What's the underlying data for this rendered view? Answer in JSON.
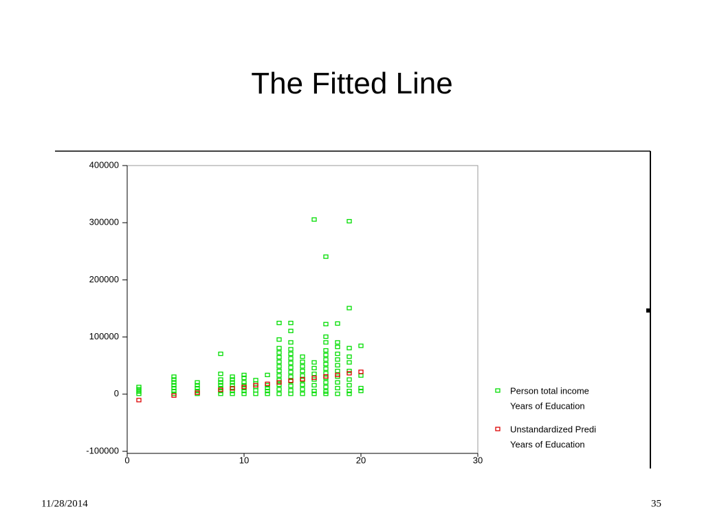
{
  "title": "The Fitted Line",
  "footer": {
    "date": "11/28/2014",
    "page": "35"
  },
  "chart_data": {
    "type": "scatter",
    "xlim": [
      0,
      30
    ],
    "xticks": [
      0,
      10,
      20,
      30
    ],
    "ylim": [
      -100000,
      400000
    ],
    "yticks": [
      -100000,
      0,
      100000,
      200000,
      300000,
      400000
    ],
    "legend": "right",
    "series": [
      {
        "name": "Person total income",
        "x_name": "Years of Education",
        "color": "#00dd00",
        "x": [
          1,
          1,
          1,
          1,
          4,
          4,
          4,
          4,
          4,
          4,
          4,
          6,
          6,
          6,
          6,
          6,
          8,
          8,
          8,
          8,
          8,
          8,
          8,
          8,
          9,
          9,
          9,
          9,
          9,
          9,
          9,
          10,
          10,
          10,
          10,
          10,
          10,
          10,
          11,
          11,
          11,
          11,
          11,
          12,
          12,
          12,
          12,
          12,
          13,
          13,
          13,
          13,
          13,
          13,
          13,
          13,
          13,
          13,
          13,
          13,
          13,
          14,
          14,
          14,
          14,
          14,
          14,
          14,
          14,
          14,
          14,
          14,
          14,
          14,
          14,
          15,
          15,
          15,
          15,
          15,
          15,
          15,
          15,
          15,
          16,
          16,
          16,
          16,
          16,
          16,
          16,
          16,
          17,
          17,
          17,
          17,
          17,
          17,
          17,
          17,
          17,
          17,
          17,
          17,
          17,
          17,
          17,
          18,
          18,
          18,
          18,
          18,
          18,
          18,
          18,
          18,
          18,
          18,
          19,
          19,
          19,
          19,
          19,
          19,
          19,
          19,
          19,
          19,
          20,
          20,
          20,
          20
        ],
        "values": [
          12000,
          8000,
          4000,
          0,
          30000,
          25000,
          20000,
          15000,
          10000,
          5000,
          0,
          20000,
          15000,
          10000,
          5000,
          0,
          70000,
          35000,
          25000,
          20000,
          15000,
          10000,
          5000,
          0,
          30000,
          25000,
          20000,
          15000,
          10000,
          5000,
          0,
          33000,
          28000,
          20000,
          15000,
          10000,
          5000,
          0,
          24000,
          18000,
          12000,
          6000,
          0,
          33000,
          15000,
          10000,
          5000,
          0,
          124000,
          95000,
          80000,
          72000,
          64000,
          56000,
          48000,
          40000,
          32000,
          24000,
          16000,
          8000,
          0,
          124000,
          110000,
          90000,
          78000,
          70000,
          62000,
          54000,
          46000,
          38000,
          30000,
          22000,
          14000,
          6000,
          0,
          65000,
          56000,
          48000,
          40000,
          32000,
          24000,
          16000,
          8000,
          0,
          305000,
          55000,
          45000,
          35000,
          25000,
          15000,
          5000,
          0,
          240000,
          122000,
          100000,
          90000,
          76000,
          68000,
          60000,
          52000,
          44000,
          36000,
          28000,
          20000,
          12000,
          4000,
          0,
          123000,
          90000,
          82000,
          70000,
          60000,
          50000,
          40000,
          30000,
          20000,
          10000,
          0,
          302000,
          150000,
          80000,
          65000,
          55000,
          40000,
          25000,
          15000,
          5000,
          0,
          84000,
          32000,
          10000,
          5000
        ]
      },
      {
        "name": "Unstandardized Predi",
        "x_name": "Years of Education",
        "color": "#dd0000",
        "x": [
          1,
          4,
          6,
          8,
          9,
          10,
          11,
          12,
          13,
          14,
          15,
          16,
          17,
          18,
          19,
          20
        ],
        "values": [
          -11000,
          -3000,
          2000,
          7000,
          9500,
          12000,
          15000,
          17500,
          20000,
          23000,
          25500,
          28000,
          30500,
          33000,
          36000,
          38500
        ]
      }
    ]
  }
}
